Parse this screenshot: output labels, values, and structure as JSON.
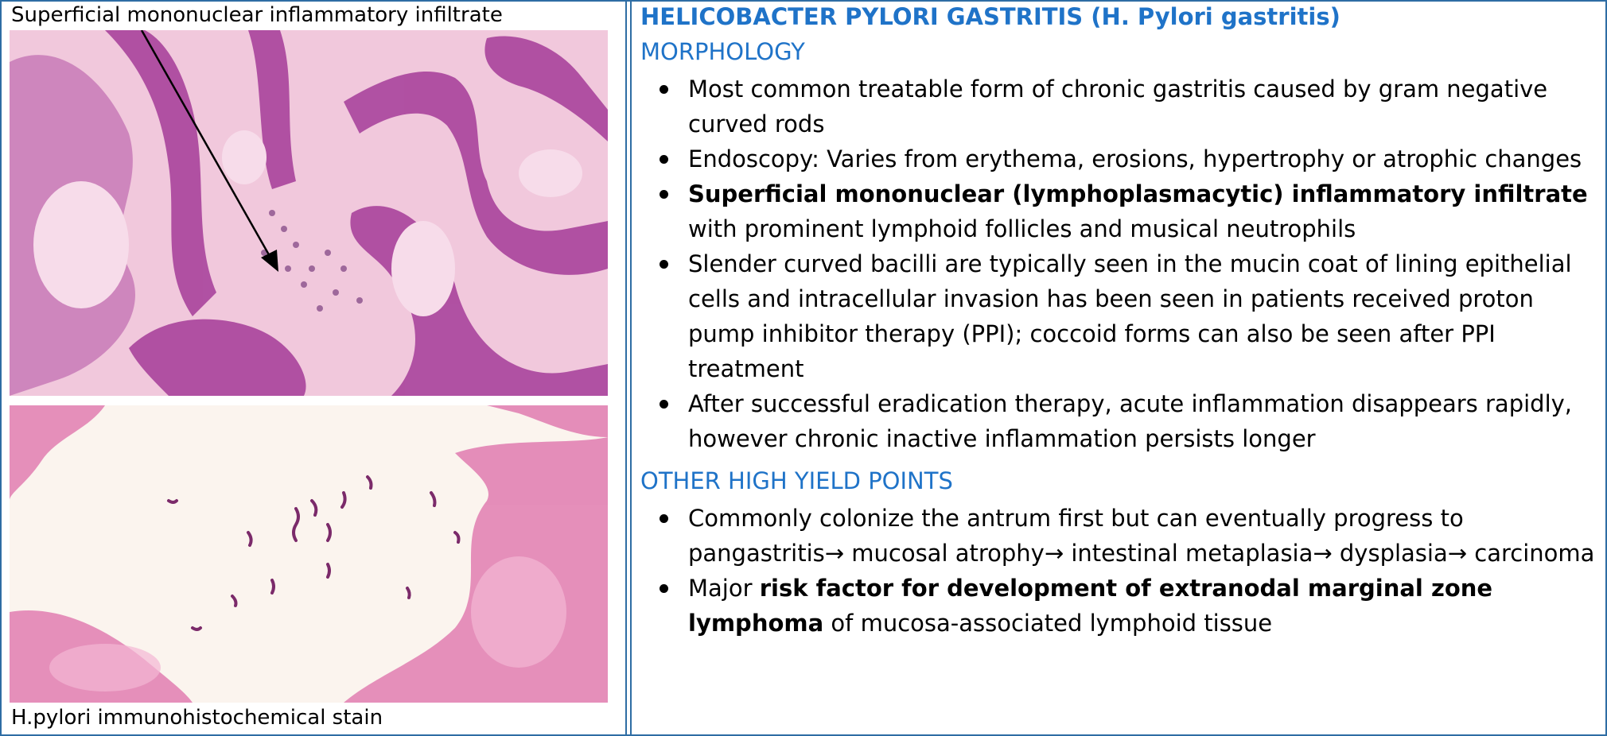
{
  "left": {
    "top_caption": "Superficial mononuclear inflammatory infiltrate",
    "bottom_caption": "H.pylori immunohistochemical stain",
    "colors": {
      "he_pink": "#f1c8dc",
      "he_purple": "#9a3a8f",
      "stain_pink": "#e07cb0"
    }
  },
  "right": {
    "title": "HELICOBACTER PYLORI GASTRITIS (H. Pylori gastritis)",
    "section1": "MORPHOLOGY",
    "m1": "Most common treatable form of chronic gastritis caused by gram negative curved rods",
    "m2": "Endoscopy: Varies from erythema, erosions, hypertrophy or atrophic changes",
    "m3_bold": "Superficial mononuclear (lymphoplasmacytic) inflammatory infiltrate",
    "m3_rest": " with prominent lymphoid follicles and musical neutrophils",
    "m4": "Slender curved bacilli are typically seen in the mucin coat of lining epithelial cells and intracellular invasion has been seen in patients received proton pump inhibitor therapy (PPI); coccoid forms can also be seen after PPI treatment",
    "m5": "After successful eradication therapy, acute inflammation disappears rapidly, however chronic inactive inflammation persists longer",
    "section2": "OTHER HIGH YIELD POINTS",
    "o1": "Commonly colonize the antrum first but can eventually progress to pangastritis→ mucosal atrophy→ intestinal metaplasia→ dysplasia→ carcinoma",
    "o2_pre": "Major ",
    "o2_bold": "risk factor for development of extranodal marginal zone lymphoma",
    "o2_rest": " of mucosa-associated lymphoid tissue",
    "accent": "#1f73c8"
  }
}
